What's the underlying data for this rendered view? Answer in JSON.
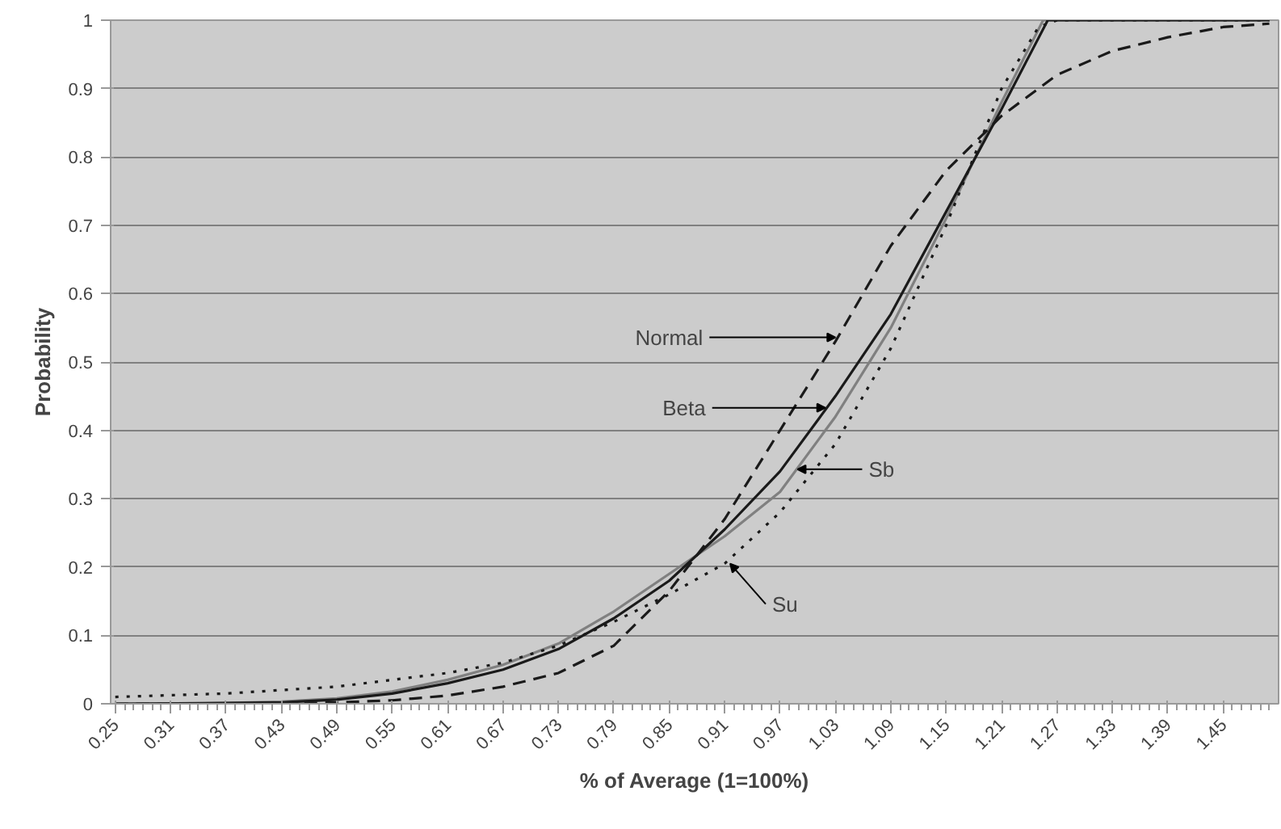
{
  "chart_data": {
    "type": "line",
    "xlabel": "% of Average (1=100%)",
    "ylabel": "Probability",
    "xlim": [
      0.245,
      1.51
    ],
    "ylim": [
      0,
      1
    ],
    "xticks": [
      0.25,
      0.31,
      0.37,
      0.43,
      0.49,
      0.55,
      0.61,
      0.67,
      0.73,
      0.79,
      0.85,
      0.91,
      0.97,
      1.03,
      1.09,
      1.15,
      1.21,
      1.27,
      1.33,
      1.39,
      1.45
    ],
    "yticks": [
      0,
      0.1,
      0.2,
      0.3,
      0.4,
      0.5,
      0.6,
      0.7,
      0.8,
      0.9,
      1
    ],
    "grid": "y",
    "marker": "none",
    "series": [
      {
        "color": "#808080",
        "line_style": "solid",
        "x": [
          0.25,
          0.37,
          0.43,
          0.49,
          0.55,
          0.61,
          0.67,
          0.73,
          0.79,
          0.85,
          0.91,
          0.97,
          1.03,
          1.09,
          1.15,
          1.21,
          1.255,
          1.5
        ],
        "values": [
          0,
          0.001,
          0.003,
          0.008,
          0.018,
          0.035,
          0.057,
          0.088,
          0.135,
          0.19,
          0.245,
          0.31,
          0.42,
          0.55,
          0.71,
          0.88,
          1.0,
          1.0
        ]
      },
      {
        "color": "#1a1a1a",
        "line_style": "solid",
        "x": [
          0.25,
          0.37,
          0.43,
          0.49,
          0.55,
          0.61,
          0.67,
          0.73,
          0.79,
          0.85,
          0.91,
          0.97,
          1.03,
          1.09,
          1.15,
          1.21,
          1.26,
          1.5
        ],
        "values": [
          0,
          0.001,
          0.002,
          0.006,
          0.015,
          0.03,
          0.05,
          0.08,
          0.125,
          0.18,
          0.255,
          0.34,
          0.45,
          0.57,
          0.72,
          0.87,
          1.0,
          1.0
        ]
      },
      {
        "color": "#1a1a1a",
        "line_style": "dashed",
        "x": [
          0.25,
          0.43,
          0.49,
          0.55,
          0.61,
          0.67,
          0.73,
          0.79,
          0.85,
          0.91,
          0.97,
          1.03,
          1.09,
          1.15,
          1.21,
          1.27,
          1.33,
          1.39,
          1.45,
          1.5
        ],
        "values": [
          0,
          0,
          0.002,
          0.005,
          0.012,
          0.025,
          0.045,
          0.085,
          0.165,
          0.27,
          0.4,
          0.53,
          0.67,
          0.78,
          0.86,
          0.92,
          0.955,
          0.975,
          0.99,
          0.995
        ]
      },
      {
        "color": "#1a1a1a",
        "line_style": "dotted",
        "x": [
          0.25,
          0.37,
          0.49,
          0.61,
          0.67,
          0.73,
          0.79,
          0.85,
          0.91,
          0.97,
          1.03,
          1.09,
          1.15,
          1.21,
          1.25,
          1.27,
          1.5
        ],
        "values": [
          0.01,
          0.015,
          0.025,
          0.045,
          0.06,
          0.085,
          0.12,
          0.16,
          0.205,
          0.28,
          0.38,
          0.52,
          0.7,
          0.9,
          0.99,
          1.0,
          1.0
        ]
      }
    ],
    "annotations": [
      {
        "text": "Normal",
        "x": 1.03,
        "y": 0.536
      },
      {
        "text": "Beta",
        "x": 1.019,
        "y": 0.433
      },
      {
        "text": "Sb",
        "x": 0.989,
        "y": 0.343
      },
      {
        "text": "Su",
        "x": 0.916,
        "y": 0.205
      }
    ]
  }
}
